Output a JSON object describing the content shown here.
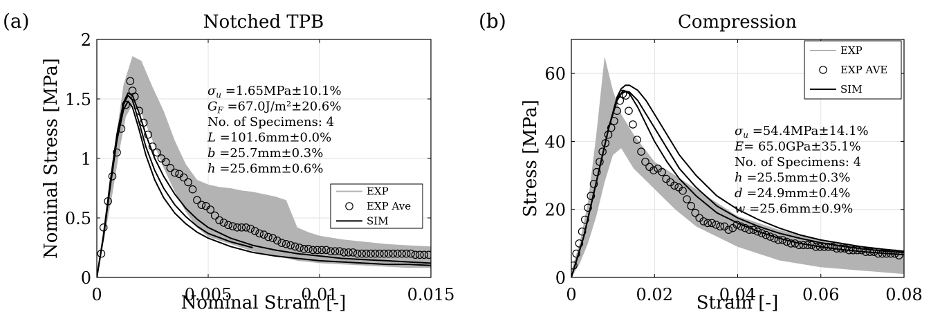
{
  "chart_data": [
    {
      "panel": "(a)",
      "type": "line",
      "title": "Notched TPB",
      "xlabel": "Nominal Strain [-]",
      "ylabel": "Nominal Stress [MPa]",
      "xlim": [
        0,
        0.015
      ],
      "ylim": [
        0,
        2
      ],
      "xticks": [
        0,
        0.005,
        0.01,
        0.015
      ],
      "xtick_labels": [
        "0",
        "0.005",
        "0.01",
        "0.015"
      ],
      "yticks": [
        0,
        0.5,
        1,
        1.5,
        2
      ],
      "ytick_labels": [
        "0",
        "0.5",
        "1",
        "1.5",
        "2"
      ],
      "grid": true,
      "legend_position": "lower-right",
      "legend": [
        "EXP",
        "EXP Ave",
        "SIM"
      ],
      "annotations": [
        {
          "sym": "σ",
          "sub": "u",
          "text": " =1.65MPa±10.1%"
        },
        {
          "sym": "G",
          "sub": "F",
          "text": " =67.0J/m²±20.6%"
        },
        {
          "sym": "",
          "sub": "",
          "text": "No. of Specimens: 4"
        },
        {
          "sym": "L",
          "sub": "",
          "text": " =101.6mm±0.0%"
        },
        {
          "sym": "b",
          "sub": "",
          "text": " =25.7mm±0.3%"
        },
        {
          "sym": "h",
          "sub": "",
          "text": " =25.6mm±0.6%"
        }
      ],
      "colors": {
        "exp": "#b3b3b3",
        "ave": "#000000",
        "sim": "#000000"
      },
      "exp_band": {
        "upper": [
          [
            0,
            0
          ],
          [
            0.0004,
            0.55
          ],
          [
            0.0008,
            1.1
          ],
          [
            0.0012,
            1.62
          ],
          [
            0.0016,
            1.86
          ],
          [
            0.002,
            1.82
          ],
          [
            0.0025,
            1.6
          ],
          [
            0.003,
            1.4
          ],
          [
            0.0035,
            1.15
          ],
          [
            0.004,
            0.95
          ],
          [
            0.0045,
            0.82
          ],
          [
            0.005,
            0.78
          ],
          [
            0.0055,
            0.76
          ],
          [
            0.006,
            0.75
          ],
          [
            0.0065,
            0.73
          ],
          [
            0.007,
            0.72
          ],
          [
            0.0075,
            0.7
          ],
          [
            0.008,
            0.68
          ],
          [
            0.0085,
            0.65
          ],
          [
            0.009,
            0.42
          ],
          [
            0.0095,
            0.38
          ],
          [
            0.01,
            0.35
          ],
          [
            0.011,
            0.32
          ],
          [
            0.012,
            0.3
          ],
          [
            0.013,
            0.28
          ],
          [
            0.014,
            0.27
          ],
          [
            0.015,
            0.26
          ]
        ],
        "lower": [
          [
            0.015,
            0.08
          ],
          [
            0.014,
            0.08
          ],
          [
            0.013,
            0.09
          ],
          [
            0.012,
            0.1
          ],
          [
            0.011,
            0.11
          ],
          [
            0.01,
            0.12
          ],
          [
            0.009,
            0.14
          ],
          [
            0.008,
            0.18
          ],
          [
            0.007,
            0.22
          ],
          [
            0.006,
            0.28
          ],
          [
            0.005,
            0.34
          ],
          [
            0.0045,
            0.42
          ],
          [
            0.004,
            0.55
          ],
          [
            0.0035,
            0.72
          ],
          [
            0.003,
            0.92
          ],
          [
            0.0025,
            1.15
          ],
          [
            0.002,
            1.38
          ],
          [
            0.0016,
            1.45
          ],
          [
            0.0013,
            1.35
          ],
          [
            0.001,
            1.05
          ],
          [
            0.0007,
            0.7
          ],
          [
            0.0004,
            0.4
          ],
          [
            0,
            0
          ]
        ]
      },
      "exp_average": {
        "x": [
          0.0002,
          0.0003,
          0.0005,
          0.0007,
          0.0009,
          0.0011,
          0.0013,
          0.0015,
          0.0016,
          0.0017,
          0.0019,
          0.0021,
          0.0023,
          0.0025,
          0.0027,
          0.0029,
          0.0031,
          0.0033,
          0.0035,
          0.0037,
          0.0039,
          0.0041,
          0.0043,
          0.0045,
          0.0047,
          0.0049,
          0.0051,
          0.0053,
          0.0055,
          0.0057,
          0.0059,
          0.0061,
          0.0063,
          0.0065,
          0.0067,
          0.0069,
          0.0071,
          0.0073,
          0.0075,
          0.0077,
          0.0079,
          0.0081,
          0.0083,
          0.0085,
          0.0087,
          0.0089,
          0.0091,
          0.0093,
          0.0095,
          0.0097,
          0.0099,
          0.0101,
          0.0103,
          0.0105,
          0.0107,
          0.0109,
          0.0111,
          0.0113,
          0.0115,
          0.0117,
          0.0119,
          0.0121,
          0.0123,
          0.0125,
          0.0127,
          0.0129,
          0.0131,
          0.0133,
          0.0135,
          0.0137,
          0.0139,
          0.0141,
          0.0143,
          0.0145,
          0.0147,
          0.0149
        ],
        "y": [
          0.2,
          0.42,
          0.64,
          0.85,
          1.05,
          1.25,
          1.45,
          1.65,
          1.57,
          1.52,
          1.4,
          1.3,
          1.2,
          1.1,
          1.05,
          1.0,
          0.97,
          0.92,
          0.88,
          0.87,
          0.84,
          0.8,
          0.74,
          0.65,
          0.61,
          0.6,
          0.57,
          0.52,
          0.48,
          0.46,
          0.44,
          0.43,
          0.42,
          0.42,
          0.42,
          0.41,
          0.39,
          0.37,
          0.36,
          0.34,
          0.33,
          0.31,
          0.29,
          0.28,
          0.27,
          0.26,
          0.25,
          0.24,
          0.24,
          0.23,
          0.23,
          0.23,
          0.23,
          0.22,
          0.22,
          0.22,
          0.21,
          0.21,
          0.21,
          0.2,
          0.2,
          0.2,
          0.2,
          0.2,
          0.2,
          0.2,
          0.2,
          0.2,
          0.2,
          0.2,
          0.2,
          0.2,
          0.19,
          0.19,
          0.19,
          0.19
        ]
      },
      "sim": [
        {
          "x": [
            0,
            0.0003,
            0.0006,
            0.0009,
            0.0012,
            0.0014,
            0.0016,
            0.0019,
            0.0022,
            0.0026,
            0.003,
            0.0035,
            0.004,
            0.0045,
            0.005,
            0.006,
            0.007,
            0.008,
            0.009,
            0.01,
            0.011,
            0.012,
            0.013,
            0.014,
            0.015
          ],
          "y": [
            0,
            0.36,
            0.8,
            1.2,
            1.47,
            1.55,
            1.53,
            1.38,
            1.2,
            1.0,
            0.85,
            0.7,
            0.58,
            0.49,
            0.42,
            0.33,
            0.27,
            0.23,
            0.2,
            0.18,
            0.16,
            0.15,
            0.14,
            0.13,
            0.12
          ]
        },
        {
          "x": [
            0,
            0.0003,
            0.0006,
            0.0009,
            0.0012,
            0.0014,
            0.0016,
            0.0019,
            0.0022,
            0.0026,
            0.003,
            0.0035,
            0.004,
            0.0045,
            0.005,
            0.006,
            0.007
          ],
          "y": [
            0,
            0.35,
            0.78,
            1.18,
            1.45,
            1.53,
            1.49,
            1.3,
            1.1,
            0.9,
            0.75,
            0.61,
            0.51,
            0.43,
            0.37,
            0.3,
            0.25
          ]
        },
        {
          "x": [
            0,
            0.0003,
            0.0006,
            0.0009,
            0.0012,
            0.0014,
            0.0016,
            0.0019,
            0.0022,
            0.0026,
            0.003,
            0.0035,
            0.004,
            0.0045,
            0.005,
            0.006,
            0.007,
            0.008,
            0.009,
            0.01,
            0.011,
            0.012,
            0.013,
            0.014,
            0.015
          ],
          "y": [
            0,
            0.34,
            0.76,
            1.15,
            1.41,
            1.48,
            1.43,
            1.24,
            1.03,
            0.82,
            0.67,
            0.54,
            0.45,
            0.38,
            0.33,
            0.26,
            0.21,
            0.18,
            0.16,
            0.14,
            0.13,
            0.12,
            0.11,
            0.11,
            0.1
          ]
        }
      ]
    },
    {
      "panel": "(b)",
      "type": "line",
      "title": "Compression",
      "xlabel": "Strain [-]",
      "ylabel": "Stress [MPa]",
      "xlim": [
        0,
        0.08
      ],
      "ylim": [
        0,
        70
      ],
      "xticks": [
        0,
        0.02,
        0.04,
        0.06,
        0.08
      ],
      "xtick_labels": [
        "0",
        "0.02",
        "0.04",
        "0.06",
        "0.08"
      ],
      "yticks": [
        0,
        20,
        40,
        60
      ],
      "ytick_labels": [
        "0",
        "20",
        "40",
        "60"
      ],
      "grid": true,
      "legend_position": "top-right",
      "legend": [
        "EXP",
        "EXP AVE",
        "SIM"
      ],
      "annotations": [
        {
          "sym": "σ",
          "sub": "u",
          "text": " =54.4MPa±14.1%"
        },
        {
          "sym": "E",
          "sub": "",
          "text": "= 65.0GPa±35.1%"
        },
        {
          "sym": "",
          "sub": "",
          "text": "No. of Specimens: 4"
        },
        {
          "sym": "h",
          "sub": "",
          "text": " =25.5mm±0.3%"
        },
        {
          "sym": "d",
          "sub": "",
          "text": " =24.9mm±0.4%"
        },
        {
          "sym": "w",
          "sub": "",
          "text": " =25.6mm±0.9%"
        }
      ],
      "colors": {
        "exp": "#b3b3b3",
        "ave": "#000000",
        "sim": "#000000"
      },
      "exp_band": {
        "upper": [
          [
            0,
            2
          ],
          [
            0.002,
            10
          ],
          [
            0.004,
            22
          ],
          [
            0.006,
            42
          ],
          [
            0.008,
            65
          ],
          [
            0.01,
            55
          ],
          [
            0.012,
            48
          ],
          [
            0.015,
            42
          ],
          [
            0.02,
            34
          ],
          [
            0.025,
            30
          ],
          [
            0.03,
            26
          ],
          [
            0.035,
            22
          ],
          [
            0.04,
            18
          ],
          [
            0.05,
            14
          ],
          [
            0.06,
            11
          ],
          [
            0.07,
            9
          ],
          [
            0.08,
            8
          ]
        ],
        "lower": [
          [
            0.08,
            1
          ],
          [
            0.07,
            2
          ],
          [
            0.06,
            3
          ],
          [
            0.05,
            5
          ],
          [
            0.045,
            7
          ],
          [
            0.04,
            9
          ],
          [
            0.035,
            12
          ],
          [
            0.03,
            15
          ],
          [
            0.025,
            20
          ],
          [
            0.02,
            26
          ],
          [
            0.015,
            32
          ],
          [
            0.012,
            38
          ],
          [
            0.01,
            36
          ],
          [
            0.008,
            28
          ],
          [
            0.006,
            18
          ],
          [
            0.004,
            10
          ],
          [
            0.002,
            4
          ],
          [
            0,
            0
          ]
        ]
      },
      "exp_average": {
        "x": [
          0.0005,
          0.0012,
          0.0019,
          0.0026,
          0.0033,
          0.004,
          0.0047,
          0.0054,
          0.0061,
          0.0068,
          0.0075,
          0.0082,
          0.0089,
          0.0096,
          0.0103,
          0.011,
          0.0117,
          0.0124,
          0.0131,
          0.0138,
          0.0148,
          0.0158,
          0.0168,
          0.0178,
          0.0188,
          0.0198,
          0.0208,
          0.0218,
          0.0228,
          0.0238,
          0.0248,
          0.0258,
          0.0268,
          0.0278,
          0.0288,
          0.0298,
          0.0308,
          0.0318,
          0.0328,
          0.0338,
          0.0348,
          0.0358,
          0.0368,
          0.0378,
          0.0388,
          0.0398,
          0.0408,
          0.0418,
          0.0428,
          0.0438,
          0.0448,
          0.0458,
          0.0468,
          0.0478,
          0.0488,
          0.0498,
          0.0508,
          0.0518,
          0.0528,
          0.0538,
          0.0548,
          0.0558,
          0.0568,
          0.0578,
          0.0588,
          0.0598,
          0.0608,
          0.0618,
          0.0628,
          0.0638,
          0.0648,
          0.0658,
          0.0668,
          0.0678,
          0.0688,
          0.0698,
          0.0708,
          0.0718,
          0.0728,
          0.0738,
          0.0748,
          0.0758,
          0.0768,
          0.0778,
          0.0788
        ],
        "y": [
          3.5,
          7,
          10,
          13.5,
          17,
          20.5,
          24,
          27.5,
          31,
          34,
          37,
          39.5,
          42,
          44,
          46,
          49,
          52,
          54,
          53.5,
          49,
          45,
          40.5,
          37,
          34,
          32.5,
          31.5,
          32,
          31,
          29,
          28,
          27,
          26.5,
          25.5,
          23,
          21,
          19,
          17.5,
          16.5,
          16,
          16,
          15.5,
          15,
          15,
          14,
          14.5,
          15.5,
          15,
          14.5,
          14,
          14,
          13.5,
          13,
          12.5,
          12,
          11.5,
          11,
          11,
          10.5,
          10,
          10,
          9.5,
          9.5,
          9.5,
          9.5,
          9,
          9,
          9,
          9,
          9,
          8.5,
          8.5,
          8.5,
          8,
          8,
          8,
          8,
          7.5,
          7.5,
          7.5,
          7,
          7,
          7,
          7,
          7,
          6.5
        ]
      },
      "sim": [
        {
          "x": [
            0,
            0.003,
            0.006,
            0.009,
            0.011,
            0.0125,
            0.014,
            0.016,
            0.018,
            0.02,
            0.023,
            0.026,
            0.03,
            0.035,
            0.04,
            0.045,
            0.05,
            0.055,
            0.06,
            0.065,
            0.07,
            0.075,
            0.08
          ],
          "y": [
            0,
            12,
            28,
            44,
            52.5,
            55,
            54,
            50,
            45,
            40,
            34,
            29,
            24,
            19,
            16,
            13.5,
            11.5,
            10,
            9,
            8.2,
            7.6,
            7.1,
            6.7
          ]
        },
        {
          "x": [
            0,
            0.003,
            0.006,
            0.009,
            0.011,
            0.012,
            0.013,
            0.014,
            0.016,
            0.018,
            0.02,
            0.023,
            0.026,
            0.03,
            0.035,
            0.04,
            0.045,
            0.05,
            0.055,
            0.06,
            0.065,
            0.07,
            0.075,
            0.08
          ],
          "y": [
            0,
            12,
            28,
            44,
            53,
            55.5,
            56.5,
            56.5,
            55,
            52,
            48,
            42,
            36,
            30,
            24,
            20,
            17,
            14.5,
            12.5,
            11,
            10,
            9,
            8.3,
            7.7
          ]
        },
        {
          "x": [
            0,
            0.003,
            0.006,
            0.009,
            0.011,
            0.012,
            0.013,
            0.014,
            0.016,
            0.018,
            0.02,
            0.023,
            0.026,
            0.03,
            0.035,
            0.04,
            0.045,
            0.05,
            0.055,
            0.06,
            0.065,
            0.07,
            0.075,
            0.08
          ],
          "y": [
            0,
            12,
            28,
            44,
            52,
            54,
            54.8,
            54.5,
            52,
            48,
            44,
            38,
            32,
            26.5,
            21,
            17.5,
            15,
            13,
            11.5,
            10.2,
            9.2,
            8.4,
            7.8,
            7.3
          ]
        }
      ]
    }
  ]
}
